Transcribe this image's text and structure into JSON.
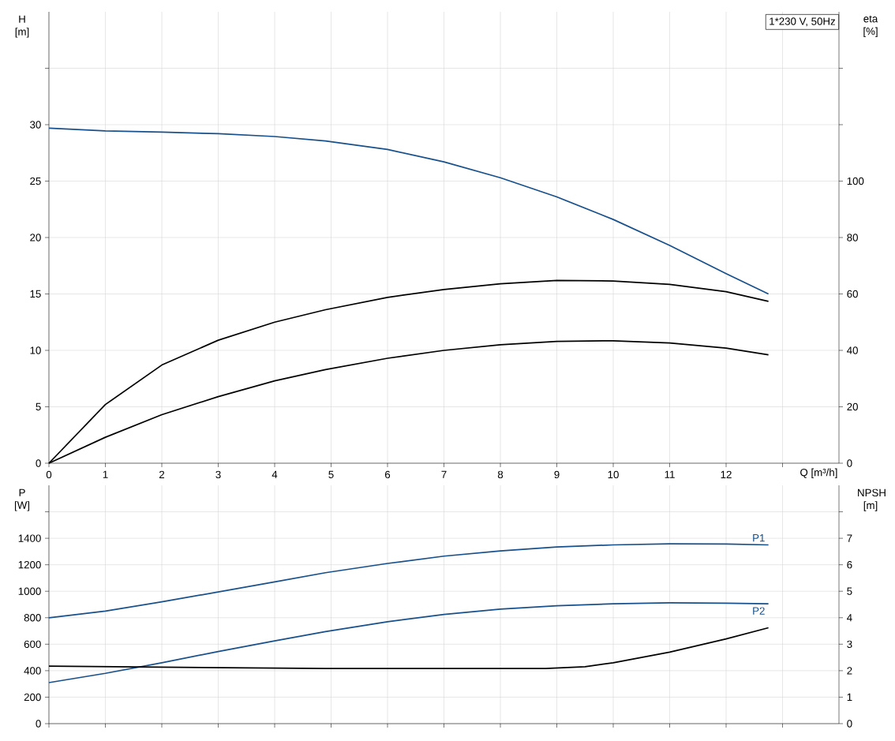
{
  "chart_data": [
    {
      "type": "line",
      "xlabel": "Q [m³/h]",
      "ylabel": "H [m]",
      "y2label": "eta [%]",
      "annotations": [
        "1*230 V, 50Hz"
      ],
      "x": [
        0,
        1,
        2,
        3,
        4,
        4.9,
        6,
        7,
        8,
        9,
        10,
        11,
        12,
        12.75
      ],
      "xlim": [
        0,
        14
      ],
      "xticks": [
        0,
        1,
        2,
        3,
        4,
        5,
        6,
        7,
        8,
        9,
        10,
        11,
        12,
        {
          "value": 13,
          "label": null
        }
      ],
      "ylim": [
        0,
        40
      ],
      "yticks": [
        0,
        5,
        10,
        15,
        20,
        25,
        30,
        {
          "value": 35,
          "label": null
        }
      ],
      "y2lim": [
        0,
        160
      ],
      "y2ticks": [
        0,
        20,
        40,
        60,
        80,
        100,
        {
          "value": 120,
          "label": null
        },
        {
          "value": 140,
          "label": null
        }
      ],
      "grid": true,
      "series": [
        {
          "color": "#17508c",
          "values": [
            29.7,
            29.45,
            29.35,
            29.2,
            28.95,
            28.55,
            27.8,
            26.7,
            25.3,
            23.6,
            21.6,
            19.3,
            16.8,
            15.0
          ]
        },
        {
          "color": "#000000",
          "axis": "y2",
          "values": [
            0,
            20.8,
            34.8,
            43.6,
            50,
            54.4,
            58.8,
            61.6,
            63.6,
            64.8,
            64.6,
            63.4,
            60.8,
            57.4
          ]
        },
        {
          "color": "#000000",
          "axis": "y2",
          "values": [
            0,
            9.2,
            17.2,
            23.6,
            29.2,
            33.2,
            37.2,
            40,
            42,
            43.2,
            43.4,
            42.6,
            40.8,
            38.4
          ]
        }
      ]
    },
    {
      "type": "line",
      "ylabel": "P [W]",
      "y2label": "NPSH [m]",
      "x": [
        0,
        1,
        2,
        3,
        4,
        4.9,
        6,
        7,
        8,
        9,
        10,
        11,
        12,
        12.75
      ],
      "xlim": [
        0,
        14
      ],
      "xticks": [
        {
          "value": 0,
          "label": null
        },
        {
          "value": 1,
          "label": null
        },
        {
          "value": 2,
          "label": null
        },
        {
          "value": 3,
          "label": null
        },
        {
          "value": 4,
          "label": null
        },
        {
          "value": 5,
          "label": null
        },
        {
          "value": 6,
          "label": null
        },
        {
          "value": 7,
          "label": null
        },
        {
          "value": 8,
          "label": null
        },
        {
          "value": 9,
          "label": null
        },
        {
          "value": 10,
          "label": null
        },
        {
          "value": 11,
          "label": null
        },
        {
          "value": 12,
          "label": null
        },
        {
          "value": 13,
          "label": null
        }
      ],
      "ylim": [
        0,
        1800
      ],
      "yticks": [
        0,
        200,
        400,
        600,
        800,
        1000,
        1200,
        1400,
        {
          "value": 1600,
          "label": null
        }
      ],
      "y2lim": [
        0,
        9
      ],
      "y2ticks": [
        0,
        1,
        2,
        3,
        4,
        5,
        6,
        7,
        {
          "value": 8,
          "label": null
        }
      ],
      "grid": true,
      "tick_labels": "y",
      "series": [
        {
          "name": "P1",
          "color": "#17508c",
          "values": [
            800,
            850,
            920,
            995,
            1070,
            1140,
            1210,
            1265,
            1305,
            1335,
            1350,
            1358,
            1357,
            1350
          ]
        },
        {
          "name": "P2",
          "color": "#17508c",
          "values": [
            310,
            380,
            460,
            545,
            625,
            695,
            770,
            825,
            865,
            890,
            905,
            912,
            910,
            905
          ]
        },
        {
          "color": "#000000",
          "axis": "y2",
          "x": [
            0,
            4.9,
            7,
            8.8,
            9.5,
            10,
            11,
            12,
            12.75
          ],
          "values": [
            2.17,
            2.08,
            2.08,
            2.08,
            2.15,
            2.3,
            2.7,
            3.2,
            3.62
          ]
        }
      ]
    }
  ]
}
